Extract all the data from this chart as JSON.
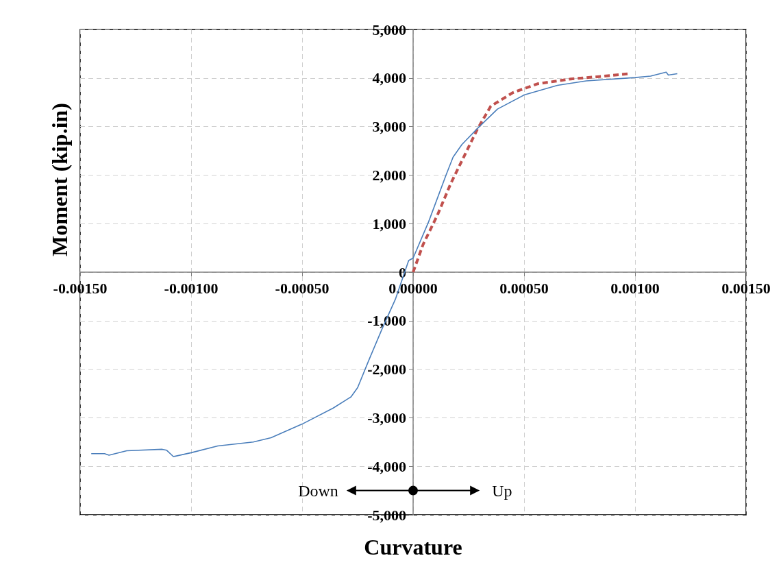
{
  "chart_data": {
    "type": "line",
    "xlabel": "Curvature",
    "ylabel": "Moment (kip.in)",
    "xlim": [
      -0.0015,
      0.0015
    ],
    "xticks": [
      {
        "value": -0.0015,
        "label": "-0.00150"
      },
      {
        "value": -0.001,
        "label": "-0.00100"
      },
      {
        "value": -0.0005,
        "label": "-0.00050"
      },
      {
        "value": 0,
        "label": "0.00000"
      },
      {
        "value": 0.0005,
        "label": "0.00050"
      },
      {
        "value": 0.001,
        "label": "0.00100"
      },
      {
        "value": 0.0015,
        "label": "0.00150"
      }
    ],
    "ylim": [
      -5000,
      5000
    ],
    "yticks": [
      {
        "value": -5000,
        "label": "-5,000"
      },
      {
        "value": -4000,
        "label": "-4,000"
      },
      {
        "value": -3000,
        "label": "-3,000"
      },
      {
        "value": -2000,
        "label": "-2,000"
      },
      {
        "value": -1000,
        "label": "-1,000"
      },
      0,
      {
        "value": 1000,
        "label": "1,000"
      },
      {
        "value": 2000,
        "label": "2,000"
      },
      {
        "value": 3000,
        "label": "3,000"
      },
      {
        "value": 4000,
        "label": "4,000"
      },
      {
        "value": 5000,
        "label": "5,000"
      }
    ],
    "grid": true,
    "marker": "none",
    "series": [
      {
        "color": "#4a7ebb",
        "line_style": "solid",
        "x": [
          -0.00145,
          -0.00139,
          -0.00137,
          -0.00129,
          -0.00113,
          -0.00111,
          -0.00108,
          -0.001,
          -0.00088,
          -0.00072,
          -0.00064,
          -0.0005,
          -0.00036,
          -0.00028,
          -0.00025,
          -0.0002,
          -0.00014,
          -8e-05,
          -2e-05,
          0,
          7e-05,
          0.00015,
          0.00018,
          0.00022,
          0.00029,
          0.00038,
          0.0005,
          0.00065,
          0.00078,
          0.001,
          0.00107,
          0.00114,
          0.00115,
          0.00119
        ],
        "values": [
          -3740,
          -3740,
          -3770,
          -3680,
          -3650,
          -3670,
          -3800,
          -3720,
          -3580,
          -3500,
          -3410,
          -3130,
          -2800,
          -2570,
          -2380,
          -1820,
          -1170,
          -560,
          240,
          290,
          1040,
          2020,
          2370,
          2630,
          2960,
          3360,
          3650,
          3850,
          3940,
          4010,
          4040,
          4120,
          4060,
          4090
        ]
      },
      {
        "color": "#c0504d",
        "line_style": "dashed",
        "x": [
          0,
          4.5e-05,
          0.00011,
          0.00017,
          0.00023,
          0.00029,
          0.00035,
          0.00045,
          0.00056,
          0.00071,
          0.00084,
          0.00098
        ],
        "values": [
          0,
          570,
          1180,
          1830,
          2390,
          2950,
          3420,
          3700,
          3880,
          3980,
          4030,
          4090
        ]
      }
    ],
    "annotations": [
      "Down",
      "Up"
    ]
  }
}
